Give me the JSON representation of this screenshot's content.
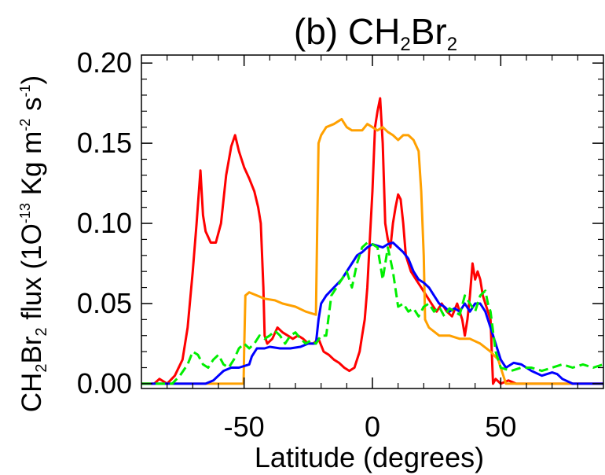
{
  "chart_data": {
    "type": "line",
    "title": {
      "text": "(b) CH",
      "sub1": "2",
      "mid": "Br",
      "sub2": "2"
    },
    "xlabel": "Latitude (degrees)",
    "ylabel": {
      "p1": "CH",
      "s1": "2",
      "p2": "Br",
      "s2": "2",
      "p3": " flux (1O",
      "e1": "-13",
      "p4": " Kg m",
      "e2": "-2",
      "p5": " s",
      "e3": "-1",
      "p6": ")"
    },
    "xlim": [
      -90,
      90
    ],
    "ylim": [
      -0.003,
      0.205
    ],
    "xticks": [
      {
        "value": -50,
        "label": "-50"
      },
      {
        "value": 0,
        "label": "0"
      },
      {
        "value": 50,
        "label": "50"
      }
    ],
    "yticks": [
      {
        "value": 0.0,
        "label": "0.00"
      },
      {
        "value": 0.05,
        "label": "0.05"
      },
      {
        "value": 0.1,
        "label": "0.10"
      },
      {
        "value": 0.15,
        "label": "0.15"
      },
      {
        "value": 0.2,
        "label": "0.20"
      }
    ],
    "series": [
      {
        "color": "#ff0000",
        "dash": "",
        "x": [
          -90,
          -85,
          -83,
          -80,
          -77,
          -74,
          -72,
          -70,
          -68.5,
          -67,
          -66,
          -65,
          -63,
          -61,
          -59,
          -57,
          -55,
          -53.5,
          -52,
          -50,
          -48,
          -46,
          -44.5,
          -43.5,
          -42.5,
          -42,
          -41,
          -39,
          -37,
          -35,
          -33,
          -31,
          -29,
          -27,
          -25,
          -23,
          -21,
          -19,
          -17,
          -15,
          -13,
          -11,
          -9,
          -7,
          -5,
          -4,
          -3,
          -2,
          -1,
          0,
          1,
          2,
          3,
          4,
          5,
          6,
          7,
          8,
          9,
          10,
          11,
          12,
          13,
          15,
          17,
          19,
          21,
          23,
          25,
          27,
          29,
          31,
          33,
          35,
          36,
          37,
          38,
          39,
          40,
          41,
          42,
          43,
          44,
          45,
          46,
          47,
          48,
          50,
          53,
          56,
          58,
          60,
          63,
          66,
          70,
          75,
          80,
          85,
          90
        ],
        "y": [
          0.0,
          0.0,
          0.003,
          0.0,
          0.005,
          0.015,
          0.035,
          0.07,
          0.1,
          0.133,
          0.105,
          0.095,
          0.088,
          0.088,
          0.1,
          0.13,
          0.148,
          0.155,
          0.145,
          0.135,
          0.128,
          0.12,
          0.11,
          0.1,
          0.06,
          0.03,
          0.025,
          0.028,
          0.035,
          0.032,
          0.03,
          0.028,
          0.03,
          0.028,
          0.025,
          0.025,
          0.028,
          0.02,
          0.018,
          0.015,
          0.013,
          0.01,
          0.008,
          0.01,
          0.02,
          0.03,
          0.04,
          0.06,
          0.09,
          0.12,
          0.16,
          0.17,
          0.178,
          0.15,
          0.1,
          0.09,
          0.085,
          0.1,
          0.11,
          0.118,
          0.115,
          0.1,
          0.08,
          0.07,
          0.065,
          0.06,
          0.055,
          0.05,
          0.045,
          0.05,
          0.045,
          0.042,
          0.05,
          0.04,
          0.03,
          0.04,
          0.055,
          0.075,
          0.065,
          0.07,
          0.065,
          0.055,
          0.05,
          0.045,
          0.04,
          0.0,
          0.003,
          0.0,
          0.002,
          0.0,
          0.0,
          0.0,
          0.0,
          0.0,
          0.0,
          0.0,
          0.0,
          0.0,
          0.0
        ]
      },
      {
        "color": "#ffa000",
        "dash": "",
        "x": [
          -90,
          -55,
          -50.2,
          -50,
          -49.5,
          -48,
          -45,
          -42,
          -38,
          -35,
          -30,
          -26,
          -22,
          -21.5,
          -21,
          -20,
          -18,
          -15,
          -12,
          -10,
          -8,
          -6,
          -4,
          -2,
          0,
          2,
          4,
          6,
          8,
          10,
          12,
          14,
          16,
          18,
          19,
          20,
          20.5,
          22,
          26,
          30,
          34,
          38,
          42,
          46,
          49,
          50,
          51,
          52,
          55,
          60,
          65,
          70,
          80,
          90
        ],
        "y": [
          0.0,
          0.0,
          0.0,
          0.02,
          0.055,
          0.057,
          0.055,
          0.053,
          0.052,
          0.05,
          0.048,
          0.045,
          0.043,
          0.1,
          0.15,
          0.155,
          0.16,
          0.162,
          0.165,
          0.16,
          0.158,
          0.158,
          0.158,
          0.162,
          0.16,
          0.158,
          0.16,
          0.157,
          0.155,
          0.152,
          0.155,
          0.155,
          0.152,
          0.145,
          0.12,
          0.08,
          0.04,
          0.035,
          0.03,
          0.03,
          0.028,
          0.028,
          0.025,
          0.02,
          0.015,
          0.01,
          0.005,
          0.0,
          0.0,
          0.0,
          0.0,
          0.0,
          0.0,
          0.0
        ]
      },
      {
        "color": "#0000ff",
        "dash": "",
        "x": [
          -90,
          -65,
          -62,
          -60,
          -58,
          -55,
          -52,
          -48,
          -47,
          -45,
          -42,
          -40,
          -36,
          -32,
          -28,
          -25,
          -22,
          -21,
          -20,
          -18,
          -15,
          -12,
          -10,
          -8,
          -6,
          -4,
          -2,
          0,
          2,
          4,
          6,
          8,
          10,
          12,
          14,
          16,
          18,
          20,
          22,
          24,
          26,
          28,
          30,
          32,
          34,
          36,
          38,
          40,
          42,
          44,
          46,
          48,
          50,
          52,
          55,
          58,
          62,
          66,
          70,
          72,
          74,
          78,
          82,
          90
        ],
        "y": [
          0.0,
          0.0,
          0.002,
          0.005,
          0.008,
          0.01,
          0.01,
          0.012,
          0.017,
          0.022,
          0.022,
          0.023,
          0.022,
          0.022,
          0.023,
          0.025,
          0.025,
          0.04,
          0.05,
          0.055,
          0.06,
          0.065,
          0.07,
          0.075,
          0.08,
          0.082,
          0.085,
          0.087,
          0.086,
          0.085,
          0.087,
          0.088,
          0.085,
          0.082,
          0.078,
          0.07,
          0.065,
          0.063,
          0.06,
          0.055,
          0.05,
          0.048,
          0.045,
          0.047,
          0.045,
          0.05,
          0.045,
          0.05,
          0.05,
          0.045,
          0.035,
          0.025,
          0.015,
          0.01,
          0.013,
          0.012,
          0.008,
          0.005,
          0.007,
          0.006,
          0.003,
          0.0,
          0.0,
          0.0
        ]
      },
      {
        "color": "#00ee00",
        "dash": "12,6",
        "x": [
          -90,
          -78,
          -75,
          -72,
          -70,
          -68,
          -66,
          -64,
          -62,
          -60,
          -58,
          -56,
          -54,
          -52,
          -50,
          -48,
          -46,
          -44,
          -42,
          -40,
          -38,
          -36,
          -34,
          -32,
          -30,
          -28,
          -26,
          -24,
          -22,
          -20,
          -18,
          -16,
          -14,
          -12,
          -10,
          -8,
          -6,
          -4,
          -2,
          0,
          2,
          4,
          6,
          8,
          10,
          12,
          14,
          16,
          18,
          20,
          22,
          24,
          26,
          28,
          30,
          32,
          34,
          36,
          38,
          40,
          42,
          44,
          45,
          46,
          48,
          50,
          54,
          58,
          62,
          66,
          70,
          74,
          78,
          82,
          86,
          90
        ],
        "y": [
          0.0,
          0.0,
          0.005,
          0.012,
          0.02,
          0.018,
          0.012,
          0.01,
          0.015,
          0.018,
          0.012,
          0.01,
          0.015,
          0.022,
          0.025,
          0.022,
          0.025,
          0.03,
          0.028,
          0.03,
          0.033,
          0.03,
          0.025,
          0.03,
          0.032,
          0.028,
          0.025,
          0.027,
          0.025,
          0.03,
          0.03,
          0.055,
          0.06,
          0.065,
          0.07,
          0.06,
          0.075,
          0.085,
          0.088,
          0.087,
          0.085,
          0.065,
          0.085,
          0.07,
          0.048,
          0.05,
          0.045,
          0.047,
          0.042,
          0.048,
          0.05,
          0.045,
          0.048,
          0.042,
          0.047,
          0.045,
          0.043,
          0.055,
          0.05,
          0.045,
          0.055,
          0.058,
          0.05,
          0.045,
          0.02,
          0.01,
          0.008,
          0.01,
          0.01,
          0.008,
          0.01,
          0.012,
          0.01,
          0.012,
          0.01,
          0.012
        ]
      }
    ]
  }
}
